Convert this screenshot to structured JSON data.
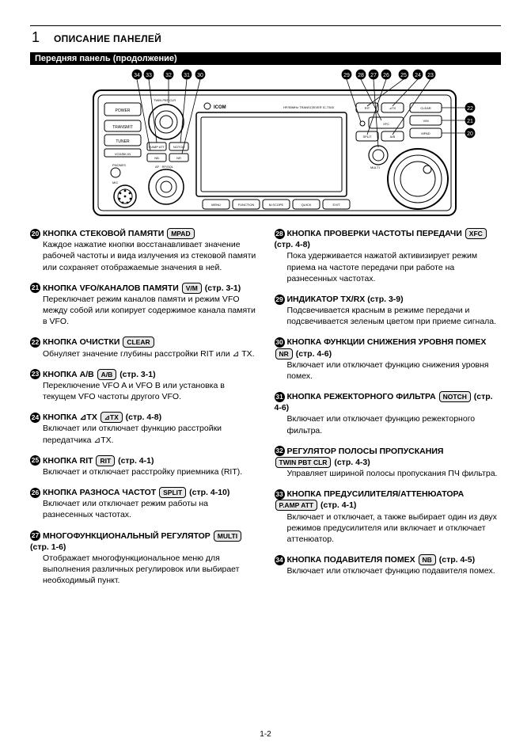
{
  "header": {
    "section_num": "1",
    "title": "ОПИСАНИЕ ПАНЕЛЕЙ"
  },
  "subheader": "Передняя панель (продолжение)",
  "callouts": {
    "top_left": [
      "34",
      "33",
      "32",
      "31",
      "30"
    ],
    "top_right": [
      "29",
      "28",
      "27",
      "26",
      "25",
      "24",
      "23"
    ],
    "right_side": [
      "22",
      "21",
      "20"
    ]
  },
  "panel_buttons": {
    "left_col": [
      "POWER",
      "TRANSMIT",
      "TUNER"
    ],
    "left_small": [
      "VOX/BK-IN",
      "PHONES",
      "MIC"
    ],
    "center_knob": "AF · RF/SQL",
    "knob_buttons": [
      "P.AMP ATT",
      "NOTCH",
      "NB",
      "NR"
    ],
    "brand": "ICOM",
    "model": "HF/50MHz TRANSCEIVER IC-7300",
    "bottom_row": [
      "MENU",
      "FUNCTION",
      "M.SCOPE",
      "QUICK",
      "EXIT"
    ],
    "right_top": [
      "RIT",
      "⊿TX",
      "XFC",
      "SPLIT",
      "A/B",
      "V/M",
      "CLEAR",
      "MPAD",
      "MULTI"
    ],
    "twin": "TWIN PBT CLR"
  },
  "page_number": "1-2",
  "left_items": [
    {
      "n": "20",
      "title": "КНОПКА СТЕКОВОЙ ПАМЯТИ",
      "cap": "MPAD",
      "body": "Каждое нажатие кнопки восстанавливает значение рабочей частоты и вида излучения из стековой памяти или сохраняет отображаемые значения в ней."
    },
    {
      "n": "21",
      "title": "КНОПКА VFO/КАНАЛОВ ПАМЯТИ",
      "cap": "V/M",
      "ref": "(стр. 3-1)",
      "body": "Переключает режим каналов памяти и режим VFO между собой или копирует содержимое канала памяти в VFO."
    },
    {
      "n": "22",
      "title": "КНОПКА ОЧИСТКИ",
      "cap": "CLEAR",
      "body": "Обнуляет значение глубины расстройки RIT или ⊿ TX."
    },
    {
      "n": "23",
      "title": "КНОПКА A/B",
      "cap": "A/B",
      "ref": "(стр. 3-1)",
      "body": "Переключение VFO A и VFO B или установка в текущем VFO частоты другого VFO."
    },
    {
      "n": "24",
      "title": "КНОПКА ⊿TX",
      "cap": "⊿TX",
      "ref": "(стр. 4-8)",
      "body": "Включает или отключает функцию расстройки передатчика ⊿TX."
    },
    {
      "n": "25",
      "title": "КНОПКА RIT",
      "cap": "RIT",
      "ref": "(стр. 4-1)",
      "body": "Включает и отключает расстройку приемника (RIT)."
    },
    {
      "n": "26",
      "title": "КНОПКА РАЗНОСА ЧАСТОТ",
      "cap": "SPLIT",
      "ref": "(стр. 4-10)",
      "body": "Включает или отключает режим работы на разнесенных частотах."
    },
    {
      "n": "27",
      "title": "МНОГОФУНКЦИОНАЛЬНЫЙ РЕГУЛЯТОР",
      "cap": "MULTI",
      "ref": "(стр. 1-6)",
      "body": "Отображает многофункциональное меню для выполнения различных регулировок или выбирает необходимый пункт."
    }
  ],
  "right_items": [
    {
      "n": "28",
      "title": "КНОПКА ПРОВЕРКИ ЧАСТОТЫ ПЕРЕДАЧИ",
      "cap": "XFC",
      "ref": "(стр. 4-8)",
      "body": "Пока удерживается нажатой активизирует режим приема на частоте передачи при работе на разнесенных частотах."
    },
    {
      "n": "29",
      "title": "ИНДИКАТОР TX/RX",
      "ref": "(стр. 3-9)",
      "body": "Подсвечивается красным в режиме передачи и подсвечивается зеленым цветом при приеме сигнала."
    },
    {
      "n": "30",
      "title": "КНОПКА ФУНКЦИИ СНИЖЕНИЯ УРОВНЯ ПОМЕХ",
      "cap": "NR",
      "ref": "(стр. 4-6)",
      "body": "Включает или отключает функцию снижения уровня помех."
    },
    {
      "n": "31",
      "title": "КНОПКА РЕЖЕКТОРНОГО ФИЛЬТРА",
      "cap": "NOTCH",
      "ref": "(стр. 4-6)",
      "body": "Включает или отключает функцию режекторного фильтра."
    },
    {
      "n": "32",
      "title": "РЕГУЛЯТОР ПОЛОСЫ ПРОПУСКАНИЯ",
      "cap": "TWIN PBT CLR",
      "ref": "(стр. 4-3)",
      "body": "Управляет шириной полосы пропускания ПЧ фильтра."
    },
    {
      "n": "33",
      "title": "КНОПКА ПРЕДУСИЛИТЕЛЯ/АТТЕНЮАТОРА",
      "cap": "P.AMP ATT",
      "ref": "(стр. 4-1)",
      "body": "Включает и отключает, а также выбирает один из двух режимов предусилителя или включает и отключает аттенюатор."
    },
    {
      "n": "34",
      "title": "КНОПКА ПОДАВИТЕЛЯ ПОМЕХ",
      "cap": "NB",
      "ref": "(стр. 4-5)",
      "body": "Включает или отключает функцию подавителя помех."
    }
  ]
}
